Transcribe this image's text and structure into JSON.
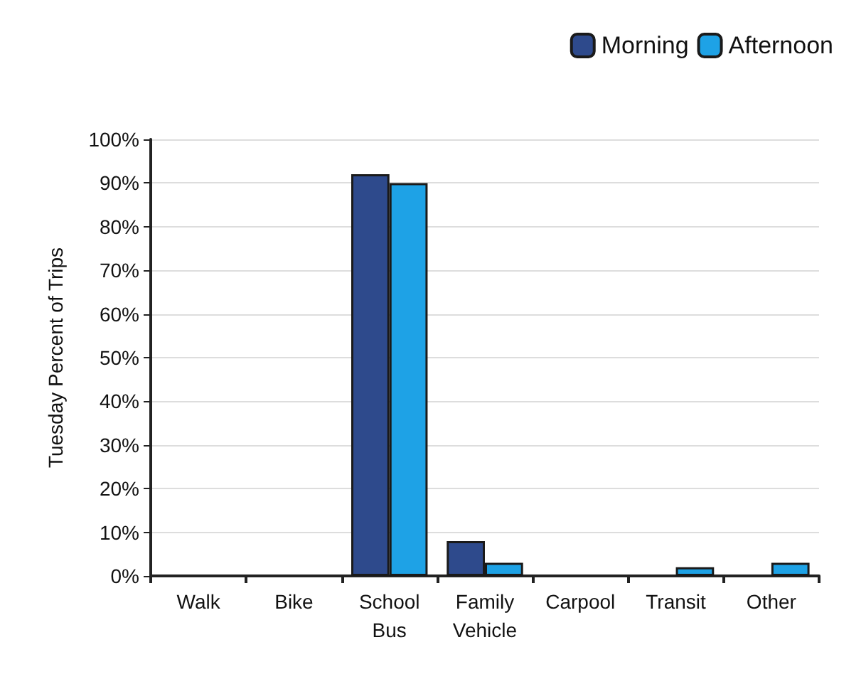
{
  "chart_data": {
    "type": "bar",
    "ylabel": "Tuesday Percent of Trips",
    "categories": [
      "Walk",
      "Bike",
      "School\nBus",
      "Family\nVehicle",
      "Carpool",
      "Transit",
      "Other"
    ],
    "series": [
      {
        "name": "Morning",
        "color": "#2e4a8c",
        "values": [
          null,
          null,
          92,
          8,
          null,
          null,
          null
        ]
      },
      {
        "name": "Afternoon",
        "color": "#1ea2e6",
        "values": [
          null,
          null,
          90,
          3,
          null,
          2,
          3
        ]
      }
    ],
    "ylim": [
      0,
      100
    ],
    "yticks": [
      {
        "value": 0,
        "label": "0%"
      },
      {
        "value": 10,
        "label": "10%"
      },
      {
        "value": 20,
        "label": "20%"
      },
      {
        "value": 30,
        "label": "30%"
      },
      {
        "value": 40,
        "label": "40%"
      },
      {
        "value": 50,
        "label": "50%"
      },
      {
        "value": 60,
        "label": "60%"
      },
      {
        "value": 70,
        "label": "70%"
      },
      {
        "value": 80,
        "label": "80%"
      },
      {
        "value": 90,
        "label": "90%"
      },
      {
        "value": 100,
        "label": "100%"
      }
    ],
    "grid": "y",
    "legend": "top right"
  }
}
